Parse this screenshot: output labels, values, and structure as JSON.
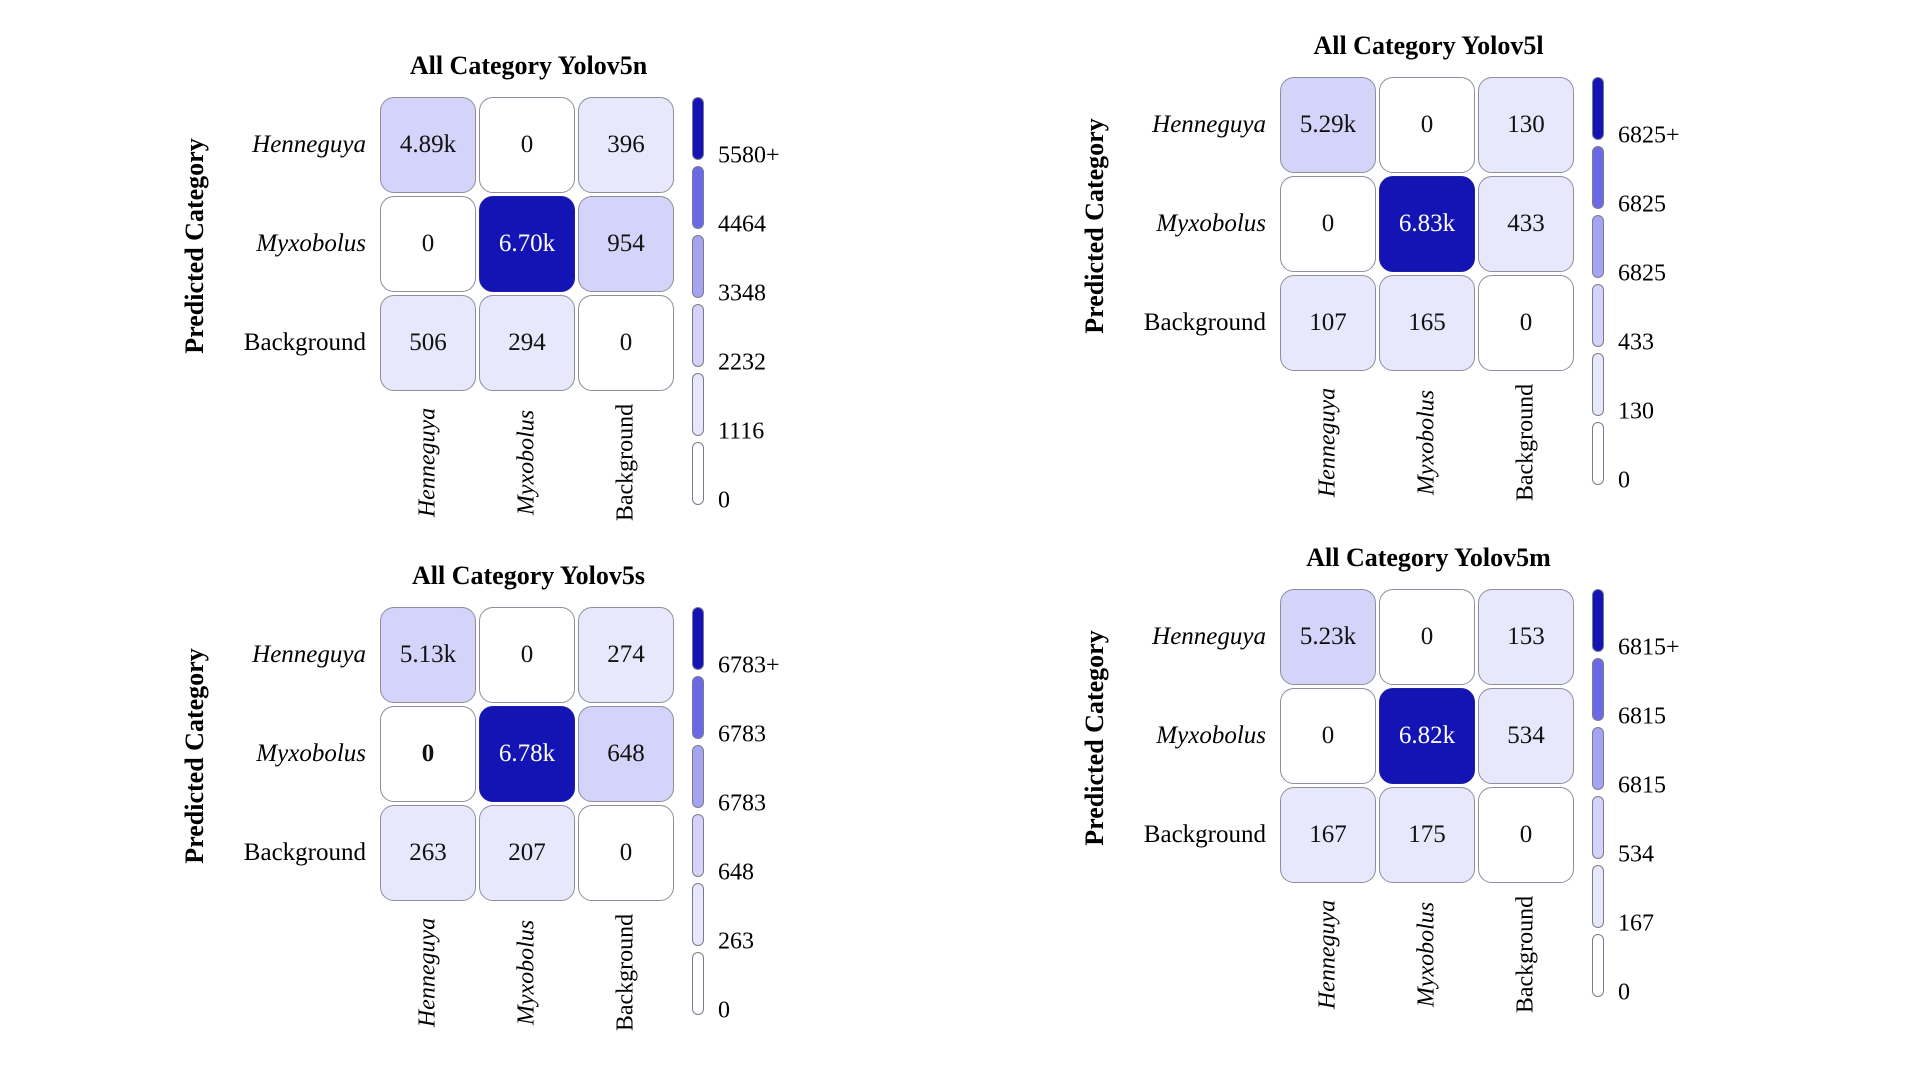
{
  "chart_data": [
    {
      "type": "heatmap",
      "title": "All Category Yolov5n",
      "ylabel": "Predicted Category",
      "row_labels": [
        "Henneguya",
        "Myxobolus",
        "Background"
      ],
      "col_labels": [
        "Henneguya",
        "Myxobolus",
        "Background"
      ],
      "values": [
        [
          4890,
          0,
          396
        ],
        [
          0,
          6700,
          954
        ],
        [
          506,
          294,
          0
        ]
      ],
      "cell_text": [
        [
          "4.89k",
          "0",
          "396"
        ],
        [
          "0",
          "6.70k",
          "954"
        ],
        [
          "506",
          "294",
          "0"
        ]
      ],
      "colorbar_ticks": [
        "5580+",
        "4464",
        "3348",
        "2232",
        "1116",
        "0"
      ]
    },
    {
      "type": "heatmap",
      "title": "All Category Yolov5l",
      "ylabel": "Predicted Category",
      "row_labels": [
        "Henneguya",
        "Myxobolus",
        "Background"
      ],
      "col_labels": [
        "Henneguya",
        "Myxobolus",
        "Background"
      ],
      "values": [
        [
          5290,
          0,
          130
        ],
        [
          0,
          6830,
          433
        ],
        [
          107,
          165,
          0
        ]
      ],
      "cell_text": [
        [
          "5.29k",
          "0",
          "130"
        ],
        [
          "0",
          "6.83k",
          "433"
        ],
        [
          "107",
          "165",
          "0"
        ]
      ],
      "colorbar_ticks": [
        "6825+",
        "6825",
        "6825",
        "433",
        "130",
        "0"
      ]
    },
    {
      "type": "heatmap",
      "title": "All Category Yolov5s",
      "ylabel": "Predicted Category",
      "row_labels": [
        "Henneguya",
        "Myxobolus",
        "Background"
      ],
      "col_labels": [
        "Henneguya",
        "Myxobolus",
        "Background"
      ],
      "values": [
        [
          5130,
          0,
          274
        ],
        [
          0,
          6780,
          648
        ],
        [
          263,
          207,
          0
        ]
      ],
      "cell_text": [
        [
          "5.13k",
          "0",
          "274"
        ],
        [
          "0",
          "6.78k",
          "648"
        ],
        [
          "263",
          "207",
          "0"
        ]
      ],
      "colorbar_ticks": [
        "6783+",
        "6783",
        "6783",
        "648",
        "263",
        "0"
      ]
    },
    {
      "type": "heatmap",
      "title": "All Category Yolov5m",
      "ylabel": "Predicted Category",
      "row_labels": [
        "Henneguya",
        "Myxobolus",
        "Background"
      ],
      "col_labels": [
        "Henneguya",
        "Myxobolus",
        "Background"
      ],
      "values": [
        [
          5230,
          0,
          153
        ],
        [
          0,
          6820,
          534
        ],
        [
          167,
          175,
          0
        ]
      ],
      "cell_text": [
        [
          "5.23k",
          "0",
          "153"
        ],
        [
          "0",
          "6.82k",
          "534"
        ],
        [
          "167",
          "175",
          "0"
        ]
      ],
      "colorbar_ticks": [
        "6815+",
        "6815",
        "6815",
        "534",
        "167",
        "0"
      ]
    }
  ],
  "colors": {
    "dark": "#1414b4",
    "mid": "#6a6ae6",
    "light": "#a4a4f0",
    "pale": "#d4d4fa",
    "faint": "#e8e8fc",
    "white": "#ffffff"
  }
}
